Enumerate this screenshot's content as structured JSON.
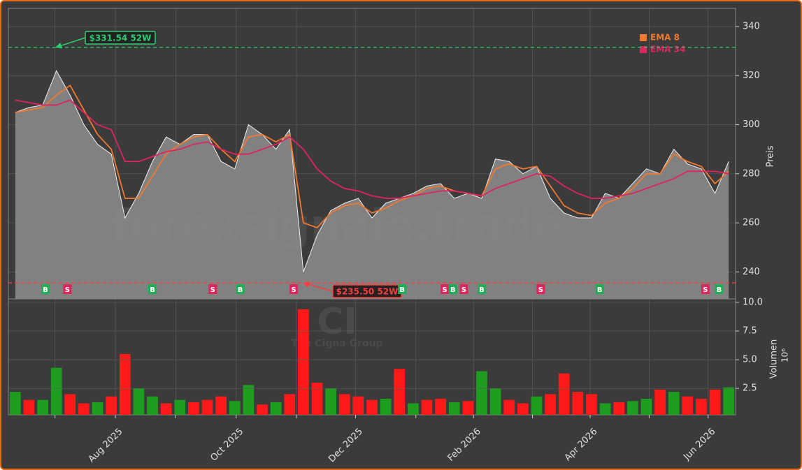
{
  "chart_data": [
    {
      "type": "area",
      "ylabel": "Preis",
      "ylim": [
        229,
        347.4
      ],
      "yticks": [
        240,
        260,
        280,
        300,
        320,
        340
      ],
      "xlim": [
        -0.5,
        52.5
      ],
      "grid": true,
      "color": "#8a8a8a",
      "values": [
        305,
        307,
        308,
        322,
        312,
        300,
        292,
        288,
        262,
        272,
        285,
        295,
        292,
        296,
        296,
        285,
        282,
        300,
        296,
        290,
        298,
        240,
        255,
        265,
        268,
        270,
        262,
        268,
        270,
        272,
        275,
        276,
        270,
        272,
        270,
        286,
        285,
        280,
        283,
        270,
        264,
        262,
        262,
        272,
        270,
        276,
        282,
        280,
        290,
        284,
        282,
        272,
        285
      ],
      "series": [
        {
          "name": "EMA 8",
          "color": "#f07830",
          "values": [
            305,
            306,
            307,
            312,
            316,
            306,
            296,
            290,
            270,
            270,
            279,
            288,
            292,
            295,
            296,
            290,
            285,
            295,
            296,
            293,
            296,
            260,
            258,
            264,
            267,
            268,
            264,
            266,
            269,
            271,
            274,
            275,
            273,
            272,
            271,
            282,
            284,
            282,
            283,
            275,
            267,
            264,
            263,
            268,
            270,
            274,
            280,
            280,
            288,
            285,
            283,
            276,
            281
          ]
        },
        {
          "name": "EMA 34",
          "color": "#e0245e",
          "values": [
            310,
            309,
            308,
            308,
            310,
            305,
            300,
            298,
            285,
            285,
            287,
            289,
            290,
            292,
            293,
            290,
            288,
            288,
            290,
            292,
            295,
            290,
            282,
            277,
            274,
            273,
            271,
            270,
            270,
            271,
            272,
            273,
            273,
            272,
            271,
            274,
            276,
            278,
            280,
            279,
            275,
            272,
            270,
            270,
            271,
            272,
            274,
            276,
            278,
            281,
            281,
            281,
            280
          ]
        }
      ],
      "legend": "upper right",
      "annotations": [
        {
          "label": "$331.54 52W",
          "value": 331.54,
          "color": "#2ecc71"
        },
        {
          "label": "$235.50 52W",
          "value": 235.5,
          "color": "#ff3b3b"
        }
      ],
      "signals": [
        {
          "label": "B",
          "x": 2.2,
          "color": "#1fae55"
        },
        {
          "label": "S",
          "x": 3.8,
          "color": "#e0245e"
        },
        {
          "label": "B",
          "x": 10.0,
          "color": "#1fae55"
        },
        {
          "label": "S",
          "x": 14.4,
          "color": "#e0245e"
        },
        {
          "label": "B",
          "x": 16.4,
          "color": "#1fae55"
        },
        {
          "label": "S",
          "x": 20.3,
          "color": "#e0245e"
        },
        {
          "label": "B",
          "x": 28.2,
          "color": "#1fae55"
        },
        {
          "label": "S",
          "x": 31.3,
          "color": "#e0245e"
        },
        {
          "label": "B",
          "x": 31.9,
          "color": "#1fae55"
        },
        {
          "label": "S",
          "x": 32.7,
          "color": "#e0245e"
        },
        {
          "label": "B",
          "x": 34.0,
          "color": "#1fae55"
        },
        {
          "label": "S",
          "x": 38.3,
          "color": "#e0245e"
        },
        {
          "label": "B",
          "x": 42.6,
          "color": "#1fae55"
        },
        {
          "label": "S",
          "x": 50.3,
          "color": "#e0245e"
        },
        {
          "label": "B",
          "x": 51.3,
          "color": "#1fae55"
        }
      ],
      "watermark": "forexsignale.trade"
    },
    {
      "type": "bar",
      "ylabel": "Volumen",
      "scale_label": "10⁶",
      "watermark_title": "CI",
      "watermark_subtitle": "The Cigna Group",
      "ylim": [
        0.2,
        10.3
      ],
      "yticks": [
        {
          "value": 10,
          "label": "10.0"
        },
        {
          "value": 7.5,
          "label": "7.5"
        },
        {
          "value": 5,
          "label": "5.0"
        },
        {
          "value": 2.5,
          "label": "2.5"
        }
      ],
      "xlim": [
        -0.5,
        52.5
      ],
      "xticks": [
        {
          "value": 7.3,
          "label": "Aug 2025"
        },
        {
          "value": 16.1,
          "label": "Oct 2025"
        },
        {
          "value": 24.8,
          "label": "Dec 2025"
        },
        {
          "value": 33.4,
          "label": "Feb 2026"
        },
        {
          "value": 41.9,
          "label": "Apr 2026"
        },
        {
          "value": 50.5,
          "label": "Jun 2026"
        }
      ],
      "xminor_ticks": [
        2.9,
        11.7,
        20.5,
        29.2,
        37.7,
        46.2
      ],
      "values": [
        2.2,
        1.5,
        1.5,
        4.3,
        2.0,
        1.2,
        1.3,
        1.8,
        5.5,
        2.5,
        1.8,
        1.2,
        1.5,
        1.3,
        1.5,
        1.8,
        1.4,
        2.8,
        1.1,
        1.3,
        2.0,
        9.4,
        3.0,
        2.5,
        2.0,
        1.8,
        1.5,
        1.6,
        4.2,
        1.2,
        1.5,
        1.6,
        1.3,
        1.4,
        4.0,
        2.5,
        1.5,
        1.2,
        1.8,
        2.0,
        3.8,
        2.2,
        2.0,
        1.2,
        1.3,
        1.4,
        1.6,
        2.4,
        2.2,
        1.8,
        1.6,
        2.4,
        2.6
      ],
      "colors": [
        "#1e9e1e",
        "#ff1a1a",
        "#1e9e1e",
        "#1e9e1e",
        "#ff1a1a",
        "#ff1a1a",
        "#1e9e1e",
        "#ff1a1a",
        "#ff1a1a",
        "#1e9e1e",
        "#1e9e1e",
        "#ff1a1a",
        "#1e9e1e",
        "#ff1a1a",
        "#ff1a1a",
        "#ff1a1a",
        "#1e9e1e",
        "#1e9e1e",
        "#ff1a1a",
        "#1e9e1e",
        "#ff1a1a",
        "#ff1a1a",
        "#ff1a1a",
        "#1e9e1e",
        "#ff1a1a",
        "#ff1a1a",
        "#ff1a1a",
        "#1e9e1e",
        "#ff1a1a",
        "#1e9e1e",
        "#ff1a1a",
        "#ff1a1a",
        "#1e9e1e",
        "#ff1a1a",
        "#1e9e1e",
        "#1e9e1e",
        "#ff1a1a",
        "#ff1a1a",
        "#1e9e1e",
        "#ff1a1a",
        "#ff1a1a",
        "#ff1a1a",
        "#ff1a1a",
        "#1e9e1e",
        "#ff1a1a",
        "#1e9e1e",
        "#1e9e1e",
        "#ff1a1a",
        "#1e9e1e",
        "#ff1a1a",
        "#ff1a1a",
        "#ff1a1a",
        "#1e9e1e"
      ]
    }
  ]
}
